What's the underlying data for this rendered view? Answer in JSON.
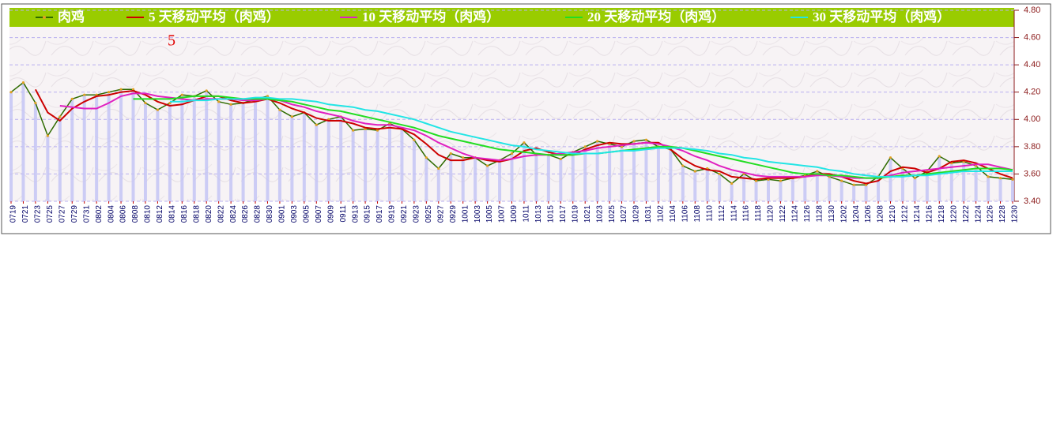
{
  "chart_data": {
    "type": "line",
    "annotation": "5",
    "categories": [
      "0719",
      "0721",
      "0723",
      "0725",
      "0727",
      "0729",
      "0731",
      "0802",
      "0804",
      "0806",
      "0808",
      "0810",
      "0812",
      "0814",
      "0816",
      "0818",
      "0820",
      "0822",
      "0824",
      "0826",
      "0828",
      "0830",
      "0901",
      "0903",
      "0905",
      "0907",
      "0909",
      "0911",
      "0913",
      "0915",
      "0917",
      "0919",
      "0921",
      "0923",
      "0925",
      "0927",
      "0929",
      "1001",
      "1003",
      "1005",
      "1007",
      "1009",
      "1011",
      "1013",
      "1015",
      "1017",
      "1019",
      "1021",
      "1023",
      "1025",
      "1027",
      "1029",
      "1031",
      "1102",
      "1104",
      "1106",
      "1108",
      "1110",
      "1112",
      "1114",
      "1116",
      "1118",
      "1120",
      "1122",
      "1124",
      "1126",
      "1128",
      "1130",
      "1202",
      "1204",
      "1206",
      "1208",
      "1210",
      "1212",
      "1214",
      "1216",
      "1218",
      "1220",
      "1222",
      "1224",
      "1226",
      "1228",
      "1230"
    ],
    "series": [
      {
        "name": "肉鸡",
        "color": "#2e6b00",
        "values": [
          4.2,
          4.27,
          4.12,
          3.88,
          4.02,
          4.15,
          4.18,
          4.18,
          4.2,
          4.22,
          4.22,
          4.12,
          4.07,
          4.12,
          4.18,
          4.17,
          4.21,
          4.13,
          4.11,
          4.12,
          4.15,
          4.17,
          4.07,
          4.02,
          4.05,
          3.96,
          4.0,
          4.02,
          3.92,
          3.93,
          3.92,
          3.97,
          3.93,
          3.85,
          3.72,
          3.64,
          3.75,
          3.72,
          3.72,
          3.66,
          3.7,
          3.75,
          3.83,
          3.74,
          3.74,
          3.71,
          3.76,
          3.8,
          3.84,
          3.82,
          3.8,
          3.84,
          3.85,
          3.8,
          3.78,
          3.66,
          3.62,
          3.64,
          3.6,
          3.53,
          3.6,
          3.55,
          3.56,
          3.55,
          3.57,
          3.59,
          3.62,
          3.58,
          3.55,
          3.52,
          3.52,
          3.58,
          3.72,
          3.64,
          3.57,
          3.62,
          3.73,
          3.68,
          3.69,
          3.66,
          3.58,
          3.57,
          3.56
        ]
      },
      {
        "name": "5 天移动平均（肉鸡）",
        "color": "#cc0000",
        "values": [
          null,
          null,
          4.22,
          4.05,
          3.99,
          4.08,
          4.13,
          4.17,
          4.18,
          4.2,
          4.21,
          4.18,
          4.13,
          4.1,
          4.11,
          4.14,
          4.17,
          4.17,
          4.14,
          4.12,
          4.13,
          4.15,
          4.12,
          4.08,
          4.05,
          4.01,
          3.99,
          3.99,
          3.97,
          3.94,
          3.93,
          3.94,
          3.93,
          3.89,
          3.82,
          3.74,
          3.7,
          3.7,
          3.72,
          3.7,
          3.69,
          3.71,
          3.77,
          3.79,
          3.76,
          3.74,
          3.74,
          3.78,
          3.81,
          3.83,
          3.82,
          3.82,
          3.83,
          3.83,
          3.78,
          3.71,
          3.66,
          3.63,
          3.62,
          3.58,
          3.57,
          3.56,
          3.57,
          3.57,
          3.57,
          3.58,
          3.6,
          3.6,
          3.58,
          3.55,
          3.53,
          3.55,
          3.62,
          3.65,
          3.64,
          3.61,
          3.64,
          3.69,
          3.7,
          3.68,
          3.64,
          3.6,
          3.57
        ]
      },
      {
        "name": "10 天移动平均（肉鸡）",
        "color": "#e020c0",
        "values": [
          null,
          null,
          null,
          null,
          4.1,
          4.09,
          4.08,
          4.08,
          4.12,
          4.17,
          4.19,
          4.19,
          4.17,
          4.16,
          4.15,
          4.14,
          4.15,
          4.15,
          4.15,
          4.14,
          4.14,
          4.15,
          4.14,
          4.11,
          4.09,
          4.06,
          4.04,
          4.02,
          3.99,
          3.97,
          3.96,
          3.96,
          3.94,
          3.92,
          3.88,
          3.83,
          3.79,
          3.75,
          3.72,
          3.71,
          3.7,
          3.71,
          3.73,
          3.74,
          3.74,
          3.75,
          3.76,
          3.77,
          3.79,
          3.8,
          3.81,
          3.82,
          3.83,
          3.82,
          3.8,
          3.77,
          3.73,
          3.7,
          3.66,
          3.63,
          3.61,
          3.59,
          3.58,
          3.58,
          3.58,
          3.58,
          3.59,
          3.59,
          3.58,
          3.57,
          3.57,
          3.57,
          3.59,
          3.61,
          3.62,
          3.63,
          3.64,
          3.65,
          3.66,
          3.67,
          3.67,
          3.65,
          3.63
        ]
      },
      {
        "name": "20 天移动平均（肉鸡）",
        "color": "#22dd22",
        "values": [
          null,
          null,
          null,
          null,
          null,
          null,
          null,
          null,
          null,
          null,
          4.15,
          4.15,
          4.15,
          4.15,
          4.16,
          4.17,
          4.17,
          4.17,
          4.16,
          4.15,
          4.15,
          4.15,
          4.14,
          4.13,
          4.11,
          4.09,
          4.07,
          4.06,
          4.04,
          4.02,
          4.0,
          3.98,
          3.96,
          3.94,
          3.91,
          3.88,
          3.86,
          3.84,
          3.82,
          3.8,
          3.78,
          3.77,
          3.76,
          3.75,
          3.74,
          3.74,
          3.74,
          3.75,
          3.75,
          3.76,
          3.77,
          3.78,
          3.79,
          3.8,
          3.8,
          3.79,
          3.77,
          3.75,
          3.73,
          3.71,
          3.69,
          3.67,
          3.65,
          3.63,
          3.61,
          3.6,
          3.6,
          3.59,
          3.59,
          3.58,
          3.57,
          3.57,
          3.58,
          3.59,
          3.59,
          3.6,
          3.61,
          3.62,
          3.63,
          3.64,
          3.64,
          3.64,
          3.63
        ]
      },
      {
        "name": "30 天移动平均（肉鸡）",
        "color": "#22e5e5",
        "values": [
          null,
          null,
          null,
          null,
          null,
          null,
          null,
          null,
          null,
          null,
          null,
          null,
          null,
          4.13,
          4.13,
          4.14,
          4.14,
          4.15,
          4.15,
          4.15,
          4.16,
          4.16,
          4.15,
          4.15,
          4.14,
          4.13,
          4.11,
          4.1,
          4.09,
          4.07,
          4.06,
          4.04,
          4.02,
          4.0,
          3.97,
          3.94,
          3.91,
          3.89,
          3.87,
          3.85,
          3.83,
          3.81,
          3.8,
          3.78,
          3.77,
          3.76,
          3.75,
          3.75,
          3.75,
          3.76,
          3.77,
          3.77,
          3.78,
          3.79,
          3.79,
          3.79,
          3.78,
          3.77,
          3.75,
          3.74,
          3.72,
          3.71,
          3.69,
          3.68,
          3.67,
          3.66,
          3.65,
          3.63,
          3.62,
          3.6,
          3.59,
          3.58,
          3.58,
          3.58,
          3.59,
          3.59,
          3.6,
          3.61,
          3.62,
          3.62,
          3.62,
          3.62,
          3.62
        ]
      }
    ],
    "ylim": [
      3.4,
      4.8
    ],
    "yticks": [
      {
        "value": 3.4,
        "label": "3.40"
      },
      {
        "value": 3.6,
        "label": "3.60"
      },
      {
        "value": 3.8,
        "label": "3.80"
      },
      {
        "value": 4.0,
        "label": "4.00"
      },
      {
        "value": 4.2,
        "label": "4.20"
      },
      {
        "value": 4.4,
        "label": "4.40"
      },
      {
        "value": 4.6,
        "label": "4.60"
      },
      {
        "value": 4.8,
        "label": "4.80"
      }
    ],
    "grid": true,
    "legend": "top"
  }
}
